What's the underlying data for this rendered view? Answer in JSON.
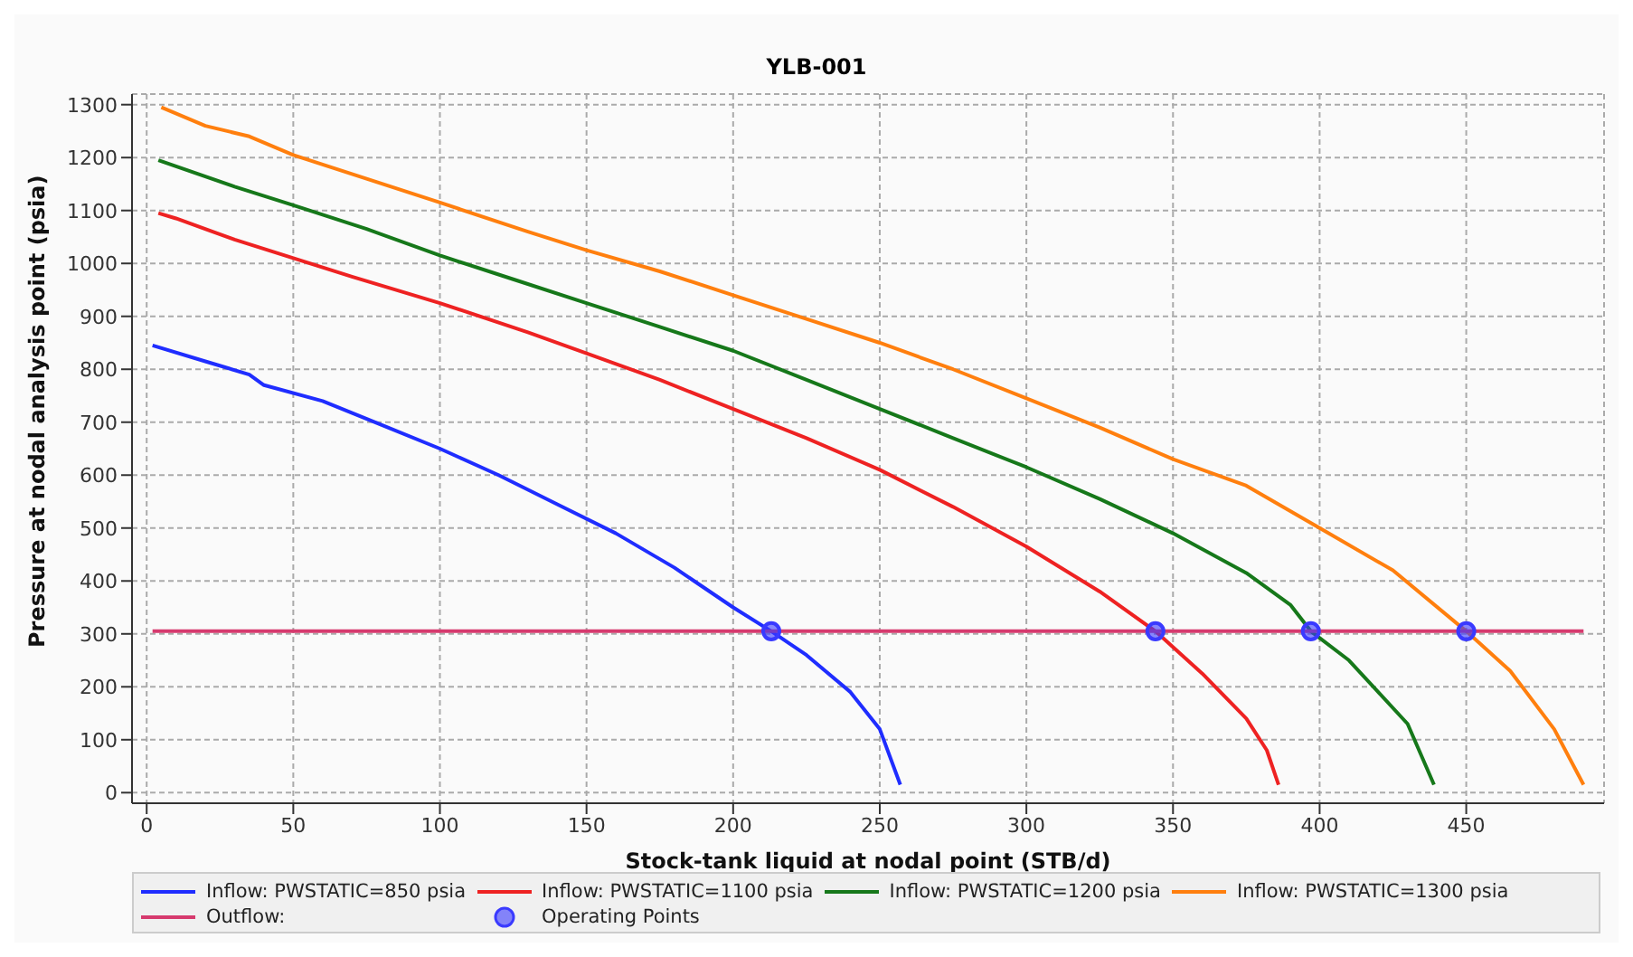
{
  "chart_data": {
    "type": "line",
    "title": "YLB-001",
    "xlabel": "Stock-tank liquid at nodal point (STB/d)",
    "ylabel": "Pressure at nodal analysis point (psia)",
    "xlim": [
      -5,
      497
    ],
    "xticks": [
      0,
      50,
      100,
      150,
      200,
      250,
      300,
      350,
      400,
      450
    ],
    "ylim": [
      -20,
      1320
    ],
    "yticks": [
      0,
      100,
      200,
      300,
      400,
      500,
      600,
      700,
      800,
      900,
      1000,
      1100,
      1200,
      1300
    ],
    "grid": true,
    "legend": "bottom",
    "line_style": "solid",
    "series": [
      {
        "name": "Inflow: PWSTATIC=850 psia",
        "color": "#1f2dff",
        "x": [
          2,
          20,
          35,
          40,
          60,
          80,
          100,
          120,
          140,
          160,
          180,
          200,
          213,
          225,
          240,
          250,
          257
        ],
        "values": [
          845,
          815,
          790,
          770,
          740,
          695,
          650,
          600,
          545,
          490,
          425,
          350,
          305,
          260,
          190,
          120,
          15
        ]
      },
      {
        "name": "Inflow: PWSTATIC=1100 psia",
        "color": "#ee2222",
        "x": [
          4,
          10,
          30,
          50,
          70,
          100,
          130,
          150,
          175,
          200,
          225,
          250,
          275,
          300,
          325,
          344,
          360,
          375,
          382,
          386
        ],
        "values": [
          1095,
          1085,
          1045,
          1010,
          975,
          925,
          870,
          830,
          780,
          725,
          670,
          610,
          540,
          465,
          380,
          305,
          225,
          140,
          80,
          15
        ]
      },
      {
        "name": "Inflow: PWSTATIC=1200 psia",
        "color": "#16781a",
        "x": [
          4,
          30,
          50,
          75,
          100,
          125,
          150,
          175,
          200,
          225,
          250,
          275,
          300,
          325,
          350,
          375,
          390,
          397,
          410,
          430,
          439
        ],
        "values": [
          1195,
          1145,
          1110,
          1065,
          1015,
          970,
          925,
          880,
          835,
          780,
          725,
          670,
          615,
          555,
          490,
          415,
          355,
          305,
          250,
          130,
          15
        ]
      },
      {
        "name": "Inflow: PWSTATIC=1300 psia",
        "color": "#ff7f0e",
        "x": [
          5,
          20,
          35,
          50,
          75,
          100,
          130,
          150,
          175,
          200,
          225,
          250,
          275,
          300,
          325,
          350,
          375,
          400,
          425,
          450,
          465,
          480,
          490
        ],
        "values": [
          1295,
          1260,
          1240,
          1205,
          1160,
          1115,
          1060,
          1025,
          985,
          940,
          895,
          850,
          800,
          745,
          690,
          630,
          580,
          500,
          420,
          305,
          230,
          120,
          15
        ]
      },
      {
        "name": "Outflow:",
        "color": "#d63a6e",
        "x": [
          2,
          490
        ],
        "values": [
          305,
          305
        ]
      },
      {
        "name": "Operating Points",
        "type": "scatter",
        "marker": "circle",
        "color": "#3a3aff",
        "x": [
          213,
          344,
          397,
          450
        ],
        "values": [
          305,
          305,
          305,
          305
        ]
      }
    ]
  }
}
